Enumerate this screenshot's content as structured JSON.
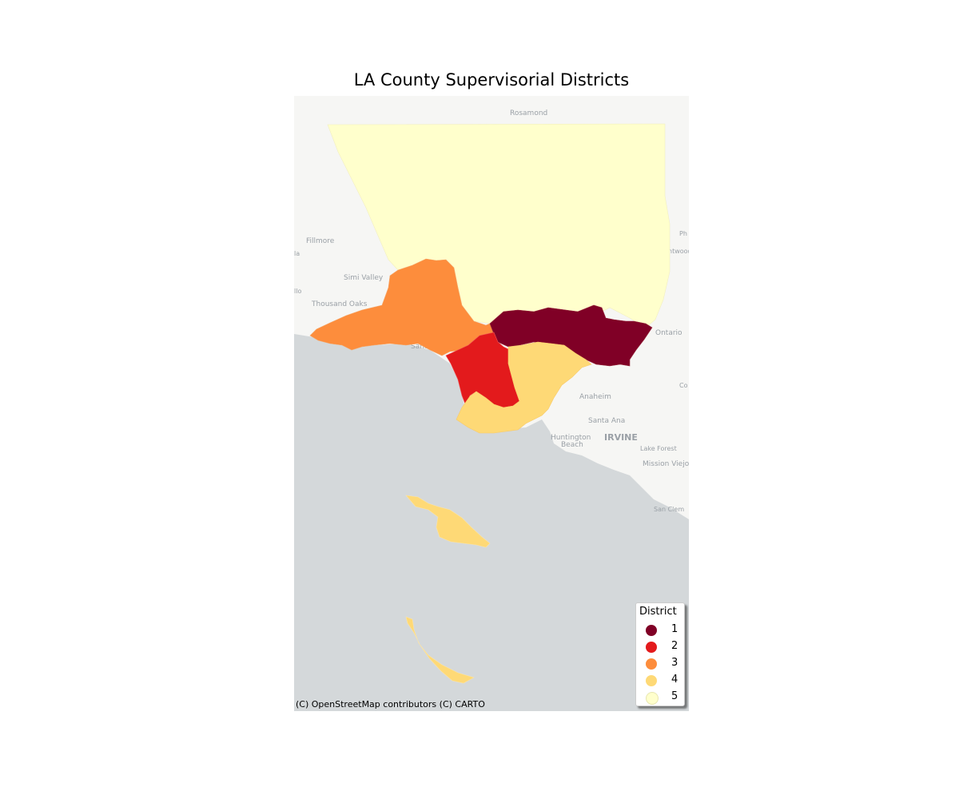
{
  "map": {
    "title": "LA County Supervisorial Districts",
    "attribution": "(C) OpenStreetMap contributors (C) CARTO",
    "colors": {
      "land": "#f6f6f4",
      "water": "#d4d8da",
      "district_1": "#800026",
      "district_2": "#e31a1c",
      "district_3": "#fd8d3c",
      "district_4": "#fed976",
      "district_5": "#ffffcc"
    },
    "legend": {
      "title": "District",
      "items": [
        {
          "label": "1",
          "color": "#800026"
        },
        {
          "label": "2",
          "color": "#e31a1c"
        },
        {
          "label": "3",
          "color": "#fd8d3c"
        },
        {
          "label": "4",
          "color": "#fed976"
        },
        {
          "label": "5",
          "color": "#ffffcc"
        }
      ]
    },
    "basemap_labels": {
      "rosamond": "Rosamond",
      "fillmore": "Fillmore",
      "simi_valley": "Simi Valley",
      "thousand_oaks": "Thousand Oaks",
      "santa": "Santa",
      "ontario": "Ontario",
      "anaheim": "Anaheim",
      "santa_ana": "Santa Ana",
      "huntington": "Huntington",
      "beach": "Beach",
      "irvine": "IRVINE",
      "lake_forest": "Lake Forest",
      "mission_viejo": "Mission Viejo",
      "san_clemente": "San Clem",
      "ph": "Ph",
      "htwood": "htwood",
      "co": "Co",
      "la": "la",
      "llo": "llo"
    }
  }
}
